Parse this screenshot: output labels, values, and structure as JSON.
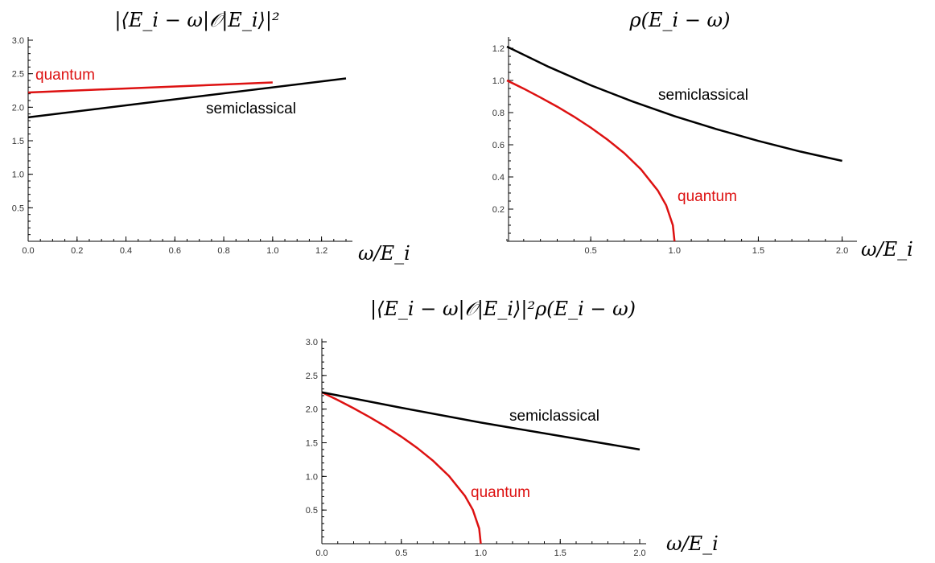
{
  "colors": {
    "quantum": "#dd1111",
    "semiclassical": "#000000"
  },
  "chart_data": [
    {
      "type": "line",
      "title": "|⟨E_i − ω|𝒪|E_i⟩|²",
      "xlabel": "ω/E_i",
      "ylabel": "",
      "xlim": [
        0,
        1.3
      ],
      "ylim": [
        0,
        3.0
      ],
      "x_ticks": [
        "0.0",
        "0.2",
        "0.4",
        "0.6",
        "0.8",
        "1.0",
        "1.2"
      ],
      "y_ticks": [
        "0.5",
        "1.0",
        "1.5",
        "2.0",
        "2.5",
        "3.0"
      ],
      "series": [
        {
          "name": "quantum",
          "x": [
            0,
            1.0
          ],
          "y": [
            2.22,
            2.37
          ]
        },
        {
          "name": "semiclassical",
          "x": [
            0,
            1.3
          ],
          "y": [
            1.85,
            2.43
          ]
        }
      ]
    },
    {
      "type": "line",
      "title": "ρ(E_i − ω)",
      "xlabel": "ω/E_i",
      "ylabel": "",
      "xlim": [
        0,
        2.05
      ],
      "ylim": [
        0,
        1.25
      ],
      "x_ticks": [
        "0.5",
        "1.0",
        "1.5",
        "2.0"
      ],
      "y_ticks": [
        "0.2",
        "0.4",
        "0.6",
        "0.8",
        "1.0",
        "1.2"
      ],
      "series": [
        {
          "name": "quantum",
          "x": [
            0,
            0.1,
            0.2,
            0.3,
            0.4,
            0.5,
            0.6,
            0.7,
            0.8,
            0.9,
            0.95,
            0.99,
            1.0
          ],
          "y": [
            1.0,
            0.949,
            0.894,
            0.837,
            0.775,
            0.707,
            0.632,
            0.548,
            0.447,
            0.316,
            0.224,
            0.1,
            0.0
          ]
        },
        {
          "name": "semiclassical",
          "x": [
            0,
            0.25,
            0.5,
            0.75,
            1.0,
            1.25,
            1.5,
            1.75,
            2.0
          ],
          "y": [
            1.21,
            1.084,
            0.97,
            0.869,
            0.778,
            0.697,
            0.624,
            0.558,
            0.5
          ]
        }
      ]
    },
    {
      "type": "line",
      "title": "|⟨E_i − ω|𝒪|E_i⟩|²ρ(E_i − ω)",
      "xlabel": "ω/E_i",
      "ylabel": "",
      "xlim": [
        0,
        2.0
      ],
      "ylim": [
        0,
        3.0
      ],
      "x_ticks": [
        "0.0",
        "0.5",
        "1.0",
        "1.5",
        "2.0"
      ],
      "y_ticks": [
        "0.5",
        "1.0",
        "1.5",
        "2.0",
        "2.5",
        "3.0"
      ],
      "series": [
        {
          "name": "quantum",
          "x": [
            0,
            0.1,
            0.2,
            0.3,
            0.4,
            0.5,
            0.6,
            0.7,
            0.8,
            0.9,
            0.95,
            0.99,
            1.0
          ],
          "y": [
            2.25,
            2.135,
            2.012,
            1.882,
            1.743,
            1.591,
            1.423,
            1.232,
            1.006,
            0.712,
            0.503,
            0.225,
            0.0
          ]
        },
        {
          "name": "semiclassical",
          "x": [
            0,
            0.5,
            1.0,
            1.5,
            2.0
          ],
          "y": [
            2.25,
            2.02,
            1.8,
            1.6,
            1.4
          ]
        }
      ]
    }
  ]
}
